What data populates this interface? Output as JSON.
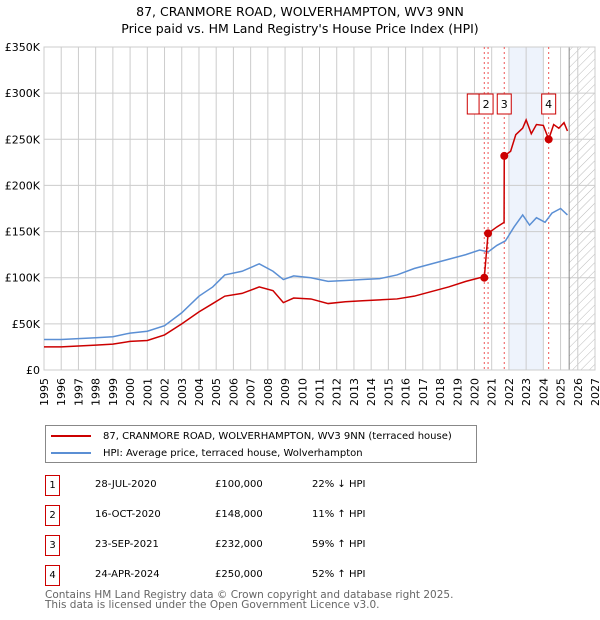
{
  "chart_data": {
    "type": "line",
    "title": "87, CRANMORE ROAD, WOLVERHAMPTON, WV3 9NN",
    "subtitle": "Price paid vs. HM Land Registry's House Price Index (HPI)",
    "xlim": [
      1995,
      2027
    ],
    "ylim": [
      0,
      350000
    ],
    "xticks": [
      "1995",
      "1996",
      "1997",
      "1998",
      "1999",
      "2000",
      "2001",
      "2002",
      "2003",
      "2004",
      "2005",
      "2006",
      "2007",
      "2008",
      "2009",
      "2010",
      "2011",
      "2012",
      "2013",
      "2014",
      "2015",
      "2016",
      "2017",
      "2018",
      "2019",
      "2020",
      "2021",
      "2022",
      "2023",
      "2024",
      "2025",
      "2026",
      "2027"
    ],
    "yticks": [
      {
        "v": 0,
        "label": "£0"
      },
      {
        "v": 50000,
        "label": "£50K"
      },
      {
        "v": 100000,
        "label": "£100K"
      },
      {
        "v": 150000,
        "label": "£150K"
      },
      {
        "v": 200000,
        "label": "£200K"
      },
      {
        "v": 250000,
        "label": "£250K"
      },
      {
        "v": 300000,
        "label": "£300K"
      },
      {
        "v": 350000,
        "label": "£350K"
      }
    ],
    "shaded_range": [
      2022,
      2024.0
    ],
    "hatched_from": 2025.5,
    "series": [
      {
        "name": "87, CRANMORE ROAD, WOLVERHAMPTON, WV3 9NN (terraced house)",
        "color": "#cc0000",
        "points": [
          [
            1995,
            25000
          ],
          [
            1996,
            25000
          ],
          [
            1997,
            26000
          ],
          [
            1998,
            27000
          ],
          [
            1999,
            28000
          ],
          [
            2000,
            31000
          ],
          [
            2001,
            32000
          ],
          [
            2002,
            38000
          ],
          [
            2003,
            50000
          ],
          [
            2004,
            63000
          ],
          [
            2004.8,
            72000
          ],
          [
            2005.5,
            80000
          ],
          [
            2006.5,
            83000
          ],
          [
            2007.5,
            90000
          ],
          [
            2008.3,
            86000
          ],
          [
            2008.9,
            73000
          ],
          [
            2009.5,
            78000
          ],
          [
            2010.5,
            77000
          ],
          [
            2011.5,
            72000
          ],
          [
            2012.5,
            74000
          ],
          [
            2013.5,
            75000
          ],
          [
            2014.5,
            76000
          ],
          [
            2015.5,
            77000
          ],
          [
            2016.5,
            80000
          ],
          [
            2017.5,
            85000
          ],
          [
            2018.5,
            90000
          ],
          [
            2019.5,
            96000
          ],
          [
            2020.3,
            100000
          ],
          [
            2020.57,
            100000
          ],
          [
            2020.79,
            148000
          ],
          [
            2021.3,
            155000
          ],
          [
            2021.72,
            160000
          ],
          [
            2021.73,
            232000
          ],
          [
            2022.1,
            237000
          ],
          [
            2022.4,
            255000
          ],
          [
            2022.8,
            262000
          ],
          [
            2023.0,
            271000
          ],
          [
            2023.3,
            256000
          ],
          [
            2023.6,
            266000
          ],
          [
            2024.0,
            265000
          ],
          [
            2024.31,
            250000
          ],
          [
            2024.6,
            266000
          ],
          [
            2024.9,
            262000
          ],
          [
            2025.2,
            268000
          ],
          [
            2025.4,
            259000
          ]
        ]
      },
      {
        "name": "HPI: Average price, terraced house, Wolverhampton",
        "color": "#5b8fd4",
        "points": [
          [
            1995,
            33000
          ],
          [
            1996,
            33000
          ],
          [
            1997,
            34000
          ],
          [
            1998,
            35000
          ],
          [
            1999,
            36000
          ],
          [
            2000,
            40000
          ],
          [
            2001,
            42000
          ],
          [
            2002,
            48000
          ],
          [
            2003,
            62000
          ],
          [
            2004,
            80000
          ],
          [
            2004.8,
            90000
          ],
          [
            2005.5,
            103000
          ],
          [
            2006.5,
            107000
          ],
          [
            2007.5,
            115000
          ],
          [
            2008.3,
            107000
          ],
          [
            2008.9,
            98000
          ],
          [
            2009.5,
            102000
          ],
          [
            2010.5,
            100000
          ],
          [
            2011.5,
            96000
          ],
          [
            2012.5,
            97000
          ],
          [
            2013.5,
            98000
          ],
          [
            2014.5,
            99000
          ],
          [
            2015.5,
            103000
          ],
          [
            2016.5,
            110000
          ],
          [
            2017.5,
            115000
          ],
          [
            2018.5,
            120000
          ],
          [
            2019.5,
            125000
          ],
          [
            2020.3,
            130000
          ],
          [
            2020.8,
            128000
          ],
          [
            2021.3,
            135000
          ],
          [
            2021.8,
            140000
          ],
          [
            2022.3,
            155000
          ],
          [
            2022.8,
            168000
          ],
          [
            2023.2,
            157000
          ],
          [
            2023.6,
            165000
          ],
          [
            2024.1,
            160000
          ],
          [
            2024.5,
            170000
          ],
          [
            2025.0,
            175000
          ],
          [
            2025.4,
            168000
          ]
        ]
      }
    ],
    "sales": [
      {
        "n": "1",
        "x": 2020.57,
        "y": 100000
      },
      {
        "n": "2",
        "x": 2020.79,
        "y": 148000
      },
      {
        "n": "3",
        "x": 2021.73,
        "y": 232000
      },
      {
        "n": "4",
        "x": 2024.31,
        "y": 250000
      }
    ]
  },
  "legend": {
    "red": "87, CRANMORE ROAD, WOLVERHAMPTON, WV3 9NN (terraced house)",
    "blue": "HPI: Average price, terraced house, Wolverhampton"
  },
  "transactions": [
    {
      "n": "1",
      "date": "28-JUL-2020",
      "price": "£100,000",
      "hpi": "22% ↓ HPI"
    },
    {
      "n": "2",
      "date": "16-OCT-2020",
      "price": "£148,000",
      "hpi": "11% ↑ HPI"
    },
    {
      "n": "3",
      "date": "23-SEP-2021",
      "price": "£232,000",
      "hpi": "59% ↑ HPI"
    },
    {
      "n": "4",
      "date": "24-APR-2024",
      "price": "£250,000",
      "hpi": "52% ↑ HPI"
    }
  ],
  "footer": {
    "line1": "Contains HM Land Registry data © Crown copyright and database right 2025.",
    "line2": "This data is licensed under the Open Government Licence v3.0."
  }
}
